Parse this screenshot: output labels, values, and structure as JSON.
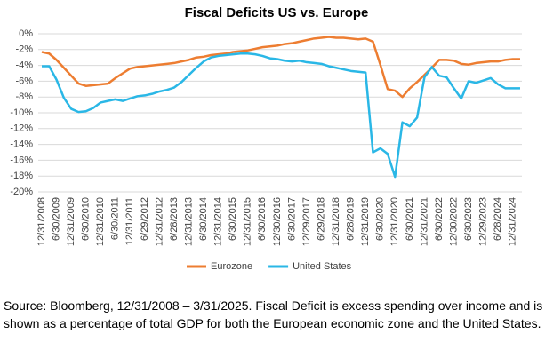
{
  "chart_data": {
    "type": "line",
    "title": "Fiscal Deficits US vs. Europe",
    "categories": [
      "12/31/2008",
      null,
      "6/30/2009",
      null,
      "12/31/2009",
      null,
      "6/30/2010",
      null,
      "12/31/2010",
      null,
      "6/30/2011",
      null,
      "12/31/2011",
      null,
      "6/29/2012",
      null,
      "12/31/2012",
      null,
      "6/28/2013",
      null,
      "12/31/2013",
      null,
      "6/30/2014",
      null,
      "12/31/2014",
      null,
      "6/30/2015",
      null,
      "12/31/2015",
      null,
      "6/30/2016",
      null,
      "12/30/2016",
      null,
      "6/30/2017",
      null,
      "12/29/2017",
      null,
      "6/29/2018",
      null,
      "12/31/2018",
      null,
      "6/28/2019",
      null,
      "12/31/2019",
      null,
      "6/30/2020",
      null,
      "12/31/2020",
      null,
      "6/30/2021",
      null,
      "12/31/2021",
      null,
      "6/30/2022",
      null,
      "12/30/2022",
      null,
      "6/30/2023",
      null,
      "12/29/2023",
      null,
      "6/28/2024",
      null,
      "12/31/2024",
      null
    ],
    "series": [
      {
        "name": "Eurozone",
        "color": "#ed7d31",
        "values": [
          -2.3,
          -2.5,
          -3.3,
          -4.3,
          -5.3,
          -6.3,
          -6.6,
          -6.5,
          -6.4,
          -6.3,
          -5.6,
          -5.0,
          -4.4,
          -4.2,
          -4.1,
          -4.0,
          -3.9,
          -3.8,
          -3.7,
          -3.5,
          -3.3,
          -3.0,
          -2.9,
          -2.7,
          -2.6,
          -2.5,
          -2.3,
          -2.2,
          -2.1,
          -1.9,
          -1.7,
          -1.6,
          -1.5,
          -1.3,
          -1.2,
          -1.0,
          -0.8,
          -0.6,
          -0.5,
          -0.4,
          -0.5,
          -0.5,
          -0.6,
          -0.7,
          -0.6,
          -1.0,
          -3.9,
          -7.0,
          -7.2,
          -8.0,
          -6.9,
          -6.1,
          -5.2,
          -4.3,
          -3.3,
          -3.3,
          -3.4,
          -3.8,
          -3.9,
          -3.7,
          -3.6,
          -3.5,
          -3.5,
          -3.3,
          -3.2,
          -3.2
        ]
      },
      {
        "name": "United States",
        "color": "#2ab7e6",
        "values": [
          -4.1,
          -4.1,
          -5.8,
          -8.1,
          -9.5,
          -9.9,
          -9.8,
          -9.4,
          -8.7,
          -8.5,
          -8.3,
          -8.5,
          -8.2,
          -7.9,
          -7.8,
          -7.6,
          -7.3,
          -7.1,
          -6.8,
          -6.1,
          -5.2,
          -4.3,
          -3.5,
          -3.0,
          -2.8,
          -2.7,
          -2.6,
          -2.5,
          -2.5,
          -2.6,
          -2.8,
          -3.1,
          -3.2,
          -3.4,
          -3.5,
          -3.4,
          -3.6,
          -3.7,
          -3.8,
          -4.1,
          -4.3,
          -4.5,
          -4.7,
          -4.8,
          -4.9,
          -15.0,
          -14.5,
          -15.2,
          -18.1,
          -11.2,
          -11.7,
          -10.6,
          -5.5,
          -4.2,
          -5.3,
          -5.5,
          -6.9,
          -8.2,
          -6.0,
          -6.2,
          -5.9,
          -5.6,
          -6.4,
          -6.9,
          -6.9,
          -6.9
        ]
      }
    ],
    "ylim": [
      -20,
      0
    ],
    "yticks": [
      {
        "value": 0,
        "label": "0%"
      },
      {
        "value": -2,
        "label": "-2%"
      },
      {
        "value": -4,
        "label": "-4%"
      },
      {
        "value": -6,
        "label": "-6%"
      },
      {
        "value": -8,
        "label": "-8%"
      },
      {
        "value": -10,
        "label": "-10%"
      },
      {
        "value": -12,
        "label": "-12%"
      },
      {
        "value": -14,
        "label": "-14%"
      },
      {
        "value": -16,
        "label": "-16%"
      },
      {
        "value": -18,
        "label": "-18%"
      },
      {
        "value": -20,
        "label": "-20%"
      }
    ],
    "grid": true,
    "legend": "bottom"
  },
  "footnote": "Source: Bloomberg, 12/31/2008 – 3/31/2025. Fiscal Deficit is excess spending over income and is shown as a percentage of total GDP for both the European economic zone and the United States."
}
